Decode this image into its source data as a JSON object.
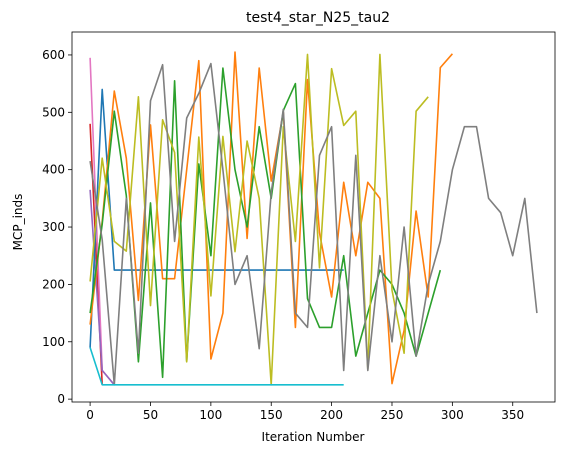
{
  "chart_data": {
    "type": "line",
    "title": "test4_star_N25_tau2",
    "xlabel": "Iteration Number",
    "ylabel": "MCP_inds",
    "xlim": [
      -15,
      385
    ],
    "ylim": [
      -5,
      640
    ],
    "xticks": [
      0,
      50,
      100,
      150,
      200,
      250,
      300,
      350
    ],
    "yticks": [
      0,
      100,
      200,
      300,
      400,
      500,
      600
    ],
    "grid": false,
    "legend": "none",
    "series": [
      {
        "color": "#d62728",
        "x": [
          0,
          10
        ],
        "y": [
          480,
          25
        ]
      },
      {
        "color": "#e377c2",
        "x": [
          0,
          10,
          20
        ],
        "y": [
          595,
          50,
          25
        ]
      },
      {
        "color": "#9467bd",
        "x": [
          0,
          10,
          20
        ],
        "y": [
          365,
          50,
          25
        ]
      },
      {
        "color": "#1f77b4",
        "x": [
          0,
          10,
          20,
          30,
          40,
          50,
          60,
          70,
          80,
          90,
          100,
          110,
          120,
          130,
          140,
          150,
          160,
          170,
          180,
          190,
          200,
          210
        ],
        "y": [
          90,
          540,
          225,
          225,
          225,
          225,
          225,
          225,
          225,
          225,
          225,
          225,
          225,
          225,
          225,
          225,
          225,
          225,
          225,
          225,
          225,
          225
        ]
      },
      {
        "color": "#ff7f0e",
        "x": [
          0,
          10,
          20,
          30,
          40,
          50,
          60,
          70,
          80,
          90,
          100,
          110,
          120,
          130,
          140,
          150,
          160,
          170,
          180,
          190,
          200,
          210,
          220,
          230,
          240,
          250,
          260,
          270,
          280,
          290,
          300
        ],
        "y": [
          130,
          310,
          537,
          420,
          172,
          478,
          210,
          210,
          400,
          590,
          70,
          150,
          605,
          280,
          577,
          380,
          500,
          125,
          557,
          290,
          178,
          378,
          250,
          378,
          350,
          27,
          120,
          328,
          178,
          578,
          602
        ]
      },
      {
        "color": "#2ca02c",
        "x": [
          0,
          10,
          20,
          30,
          40,
          50,
          60,
          70,
          80,
          90,
          100,
          110,
          120,
          130,
          140,
          150,
          160,
          170,
          180,
          190,
          200,
          210,
          220,
          230,
          240,
          250,
          260,
          270,
          280,
          290
        ],
        "y": [
          150,
          305,
          502,
          355,
          65,
          342,
          38,
          555,
          66,
          410,
          250,
          577,
          400,
          300,
          475,
          350,
          503,
          550,
          175,
          125,
          125,
          250,
          75,
          150,
          225,
          200,
          150,
          75,
          150,
          225
        ]
      },
      {
        "color": "#bcbd22",
        "x": [
          0,
          10,
          20,
          30,
          40,
          50,
          60,
          70,
          80,
          90,
          100,
          110,
          120,
          130,
          140,
          150,
          160,
          170,
          180,
          190,
          200,
          210,
          220,
          230,
          240,
          250,
          260,
          270,
          280
        ],
        "y": [
          205,
          420,
          275,
          258,
          527,
          163,
          487,
          430,
          65,
          457,
          180,
          458,
          257,
          450,
          350,
          25,
          475,
          275,
          601,
          229,
          576,
          477,
          502,
          52,
          601,
          190,
          80,
          502,
          527
        ]
      },
      {
        "color": "#7f7f7f",
        "x": [
          0,
          10,
          20,
          30,
          40,
          50,
          60,
          70,
          80,
          90,
          100,
          110,
          120,
          130,
          140,
          150,
          160,
          170,
          180,
          190,
          200,
          210,
          220,
          230,
          240,
          250,
          260,
          270,
          280,
          290,
          300,
          310,
          320,
          330,
          340,
          350,
          360,
          370
        ],
        "y": [
          415,
          278,
          25,
          350,
          80,
          520,
          583,
          275,
          490,
          533,
          585,
          400,
          200,
          250,
          88,
          360,
          505,
          150,
          125,
          425,
          475,
          50,
          425,
          50,
          250,
          100,
          300,
          75,
          200,
          275,
          400,
          475,
          475,
          350,
          325,
          250,
          350,
          150
        ]
      },
      {
        "color": "#17becf",
        "x": [
          0,
          10,
          20,
          30,
          40,
          50,
          60,
          70,
          80,
          90,
          100,
          110,
          120,
          130,
          140,
          150,
          160,
          170,
          180,
          190,
          200,
          210
        ],
        "y": [
          90,
          25,
          25,
          25,
          25,
          25,
          25,
          25,
          25,
          25,
          25,
          25,
          25,
          25,
          25,
          25,
          25,
          25,
          25,
          25,
          25,
          25
        ]
      }
    ]
  }
}
